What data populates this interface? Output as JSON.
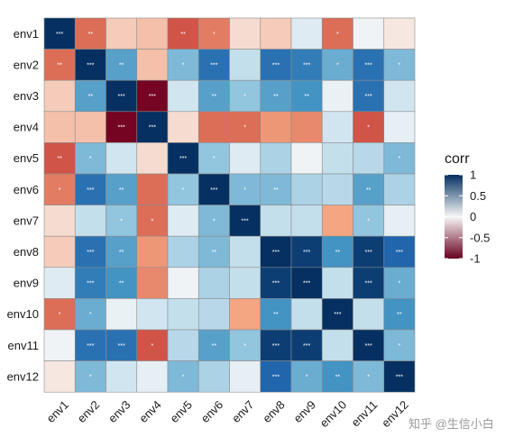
{
  "chart_data": {
    "type": "heatmap",
    "rows": [
      "env1",
      "env2",
      "env3",
      "env4",
      "env5",
      "env6",
      "env7",
      "env8",
      "env9",
      "env10",
      "env11",
      "env12"
    ],
    "columns": [
      "env1",
      "env2",
      "env3",
      "env4",
      "env5",
      "env6",
      "env7",
      "env8",
      "env9",
      "env10",
      "env11",
      "env12"
    ],
    "values": [
      [
        1.0,
        -0.35,
        -0.08,
        -0.1,
        -0.45,
        -0.3,
        -0.05,
        -0.08,
        0.1,
        -0.35,
        0.03,
        -0.03
      ],
      [
        -0.35,
        1.0,
        0.55,
        -0.1,
        0.45,
        0.75,
        0.2,
        0.75,
        0.7,
        0.5,
        0.75,
        0.45
      ],
      [
        -0.08,
        0.55,
        1.0,
        -0.95,
        0.15,
        0.55,
        0.4,
        0.55,
        0.6,
        0.05,
        0.75,
        0.15
      ],
      [
        -0.1,
        -0.1,
        -0.95,
        1.0,
        -0.05,
        -0.35,
        -0.35,
        -0.2,
        -0.25,
        0.15,
        -0.45,
        0.07
      ],
      [
        -0.45,
        0.45,
        0.15,
        -0.05,
        1.0,
        0.4,
        0.1,
        0.3,
        0.03,
        0.2,
        0.25,
        0.45
      ],
      [
        -0.3,
        0.75,
        0.55,
        -0.35,
        0.4,
        1.0,
        0.45,
        0.45,
        0.3,
        0.25,
        0.55,
        0.3
      ],
      [
        -0.05,
        0.2,
        0.4,
        -0.35,
        0.1,
        0.45,
        1.0,
        0.2,
        0.2,
        -0.15,
        0.4,
        0.07
      ],
      [
        -0.08,
        0.75,
        0.55,
        -0.2,
        0.3,
        0.45,
        0.2,
        1.0,
        0.95,
        0.6,
        0.95,
        0.8
      ],
      [
        0.1,
        0.7,
        0.6,
        -0.25,
        0.03,
        0.3,
        0.2,
        0.95,
        1.0,
        0.2,
        0.95,
        0.5
      ],
      [
        -0.35,
        0.5,
        0.05,
        0.15,
        0.2,
        0.25,
        -0.15,
        0.6,
        0.2,
        1.0,
        0.2,
        0.6
      ],
      [
        0.03,
        0.75,
        0.75,
        -0.45,
        0.25,
        0.55,
        0.4,
        0.95,
        0.95,
        0.2,
        1.0,
        0.45
      ],
      [
        -0.03,
        0.45,
        0.15,
        0.07,
        0.45,
        0.3,
        0.07,
        0.8,
        0.5,
        0.6,
        0.45,
        1.0
      ]
    ],
    "significance": [
      [
        "***",
        "**",
        "",
        "",
        "**",
        "*",
        "",
        "",
        "",
        "*",
        "",
        ""
      ],
      [
        "**",
        "***",
        "**",
        "",
        "*",
        "***",
        "",
        "***",
        "***",
        "*",
        "***",
        "*"
      ],
      [
        "",
        "**",
        "***",
        "***",
        "",
        "**",
        "*",
        "**",
        "**",
        "",
        "***",
        ""
      ],
      [
        "",
        "",
        "***",
        "***",
        "",
        "",
        "*",
        "",
        "",
        "",
        "*",
        ""
      ],
      [
        "**",
        "*",
        "",
        "",
        "***",
        "*",
        "",
        "",
        "",
        "",
        "",
        "*"
      ],
      [
        "*",
        "***",
        "**",
        "",
        "*",
        "***",
        "*",
        "**",
        "",
        "",
        "**",
        ""
      ],
      [
        "",
        "",
        "*",
        "*",
        "",
        "*",
        "***",
        "",
        "",
        "",
        "*",
        ""
      ],
      [
        "",
        "***",
        "**",
        "",
        "",
        "**",
        "",
        "***",
        "***",
        "**",
        "***",
        "***"
      ],
      [
        "",
        "***",
        "**",
        "",
        "",
        "",
        "",
        "***",
        "***",
        "",
        "***",
        "*"
      ],
      [
        "*",
        "*",
        "",
        "",
        "",
        "",
        "",
        "**",
        "",
        "***",
        "",
        "**"
      ],
      [
        "",
        "***",
        "***",
        "*",
        "",
        "**",
        "*",
        "***",
        "***",
        "",
        "***",
        "*"
      ],
      [
        "",
        "*",
        "",
        "",
        "*",
        "",
        "",
        "***",
        "*",
        "**",
        "*",
        "***"
      ]
    ],
    "color_scale": {
      "min": -1,
      "max": 1,
      "low_color": "#67001f",
      "mid_color": "#f7f7f7",
      "high_color": "#053061"
    },
    "legend": {
      "title": "corr",
      "ticks": [
        1,
        0.5,
        0,
        -0.5,
        -1
      ],
      "placement": "right"
    },
    "watermark": "知乎 @生信小白"
  }
}
